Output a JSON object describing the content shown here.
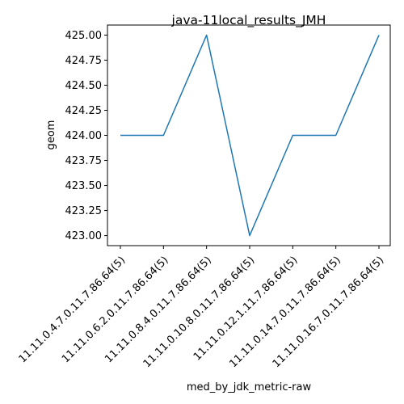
{
  "chart_data": {
    "type": "line",
    "title": "java-11local_results_JMH",
    "xlabel": "med_by_jdk_metric-raw",
    "ylabel": "geom",
    "categories": [
      "11.11.0.4.7.0.11.7.86.64(5)",
      "11.11.0.6.2.0.11.7.86.64(5)",
      "11.11.0.8.4.0.11.7.86.64(5)",
      "11.11.0.10.8.0.11.7.86.64(5)",
      "11.11.0.12.1.11.7.86.64(5)",
      "11.11.0.14.7.0.11.7.86.64(5)",
      "11.11.0.16.7.0.11.7.86.64(5)"
    ],
    "series": [
      {
        "values": [
          424,
          424,
          425,
          423,
          424,
          424,
          425
        ],
        "color": "#1f77b4"
      }
    ],
    "ylim": [
      422.9,
      425.1
    ],
    "yticks": [
      423.0,
      423.25,
      423.5,
      423.75,
      424.0,
      424.25,
      424.5,
      424.75,
      425.0
    ],
    "ytick_labels": [
      "423.00",
      "423.25",
      "423.50",
      "423.75",
      "424.00",
      "424.25",
      "424.50",
      "424.75",
      "425.00"
    ],
    "grid": false,
    "legend": "none"
  }
}
